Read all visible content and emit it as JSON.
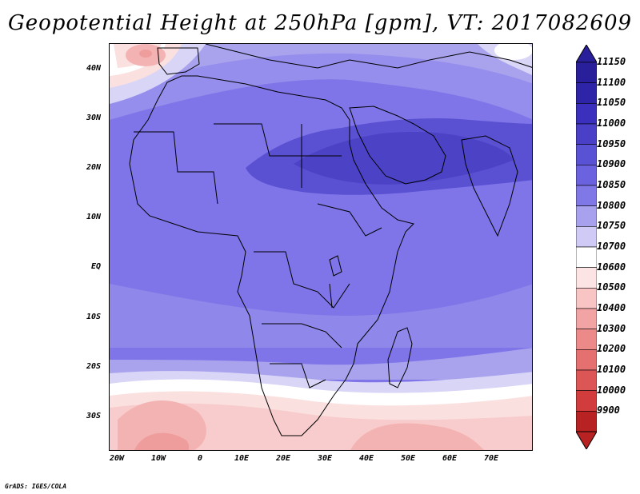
{
  "title": "Geopotential Height at 250hPa [gpm], VT: 2017082609",
  "credit": "GrADS: IGES/COLA",
  "y_axis": {
    "ticks": [
      "40N",
      "30N",
      "20N",
      "10N",
      "EQ",
      "10S",
      "20S",
      "30S"
    ]
  },
  "x_axis": {
    "ticks": [
      "20W",
      "10W",
      "0",
      "10E",
      "20E",
      "30E",
      "40E",
      "50E",
      "60E",
      "70E"
    ]
  },
  "colorbar": {
    "levels": [
      "11150",
      "11100",
      "11050",
      "11000",
      "10950",
      "10900",
      "10850",
      "10800",
      "10750",
      "10700",
      "10600",
      "10500",
      "10400",
      "10300",
      "10200",
      "10100",
      "10000",
      "9900"
    ],
    "colors": [
      "#2a1f9a",
      "#2e24a8",
      "#3a30bd",
      "#4a40c8",
      "#5a52d4",
      "#6a62de",
      "#8078e6",
      "#a8a2ee",
      "#cfcbf6",
      "#ffffff",
      "#fde4e4",
      "#f8c4c4",
      "#f2a3a3",
      "#ec8a8a",
      "#e47070",
      "#dc5656",
      "#d23c3c",
      "#b82222"
    ]
  },
  "map": {
    "region": "Africa and surrounding ocean",
    "lon_range": [
      "20W",
      "80E"
    ],
    "lat_range": [
      "37S",
      "45N"
    ],
    "field_colors": {
      "deep": "#4c42c6",
      "mid": "#7a70e4",
      "light": "#a9a3ee",
      "pale": "#d8d5f7",
      "white": "#ffffff",
      "pink_light": "#fbe0e0",
      "pink": "#f4b3b3",
      "pink_dark": "#ef9c9c"
    }
  }
}
